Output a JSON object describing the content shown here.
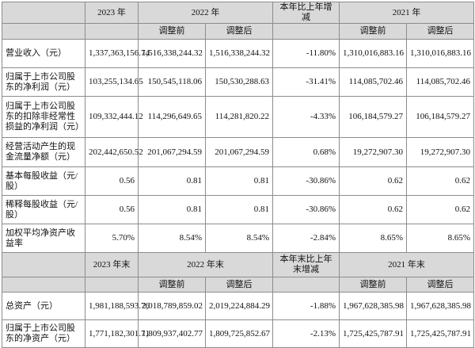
{
  "header1": {
    "c2023": "2023 年",
    "c2022": "2022 年",
    "cchange": "本年比上年增减",
    "c2021": "2021 年"
  },
  "header2": {
    "before": "调整前",
    "after": "调整后"
  },
  "rows": [
    {
      "label": "营业收入（元）",
      "v2023": "1,337,363,156.74",
      "b2022": "1,516,338,244.32",
      "a2022": "1,516,338,244.32",
      "chg": "-11.80%",
      "b2021": "1,310,016,883.16",
      "a2021": "1,310,016,883.16"
    },
    {
      "label": "归属于上市公司股东的净利润（元）",
      "v2023": "103,255,134.65",
      "b2022": "150,545,118.06",
      "a2022": "150,530,288.63",
      "chg": "-31.41%",
      "b2021": "114,085,702.46",
      "a2021": "114,085,702.46"
    },
    {
      "label": "归属于上市公司股东的扣除非经常性损益的净利润（元）",
      "v2023": "109,332,444.12",
      "b2022": "114,296,649.65",
      "a2022": "114,281,820.22",
      "chg": "-4.33%",
      "b2021": "106,184,579.27",
      "a2021": "106,184,579.27"
    },
    {
      "label": "经营活动产生的现金流量净额（元）",
      "v2023": "202,442,650.52",
      "b2022": "201,067,294.59",
      "a2022": "201,067,294.59",
      "chg": "0.68%",
      "b2021": "19,272,907.30",
      "a2021": "19,272,907.30"
    },
    {
      "label": "基本每股收益（元/股）",
      "v2023": "0.56",
      "b2022": "0.81",
      "a2022": "0.81",
      "chg": "-30.86%",
      "b2021": "0.62",
      "a2021": "0.62"
    },
    {
      "label": "稀释每股收益（元/股）",
      "v2023": "0.56",
      "b2022": "0.81",
      "a2022": "0.81",
      "chg": "-30.86%",
      "b2021": "0.62",
      "a2021": "0.62"
    },
    {
      "label": "加权平均净资产收益率",
      "v2023": "5.70%",
      "b2022": "8.54%",
      "a2022": "8.54%",
      "chg": "-2.84%",
      "b2021": "8.65%",
      "a2021": "8.65%"
    }
  ],
  "header3": {
    "c2023": "2023 年末",
    "c2022": "2022 年末",
    "cchange": "本年末比上年末增减",
    "c2021": "2021 年末"
  },
  "header4": {
    "before": "调整前",
    "after": "调整后"
  },
  "rows2": [
    {
      "label": "总资产（元）",
      "v2023": "1,981,188,593.76",
      "b2022": "2,018,789,859.02",
      "a2022": "2,019,224,884.29",
      "chg": "-1.88%",
      "b2021": "1,967,628,385.98",
      "a2021": "1,967,628,385.98"
    },
    {
      "label": "归属于上市公司股东的净资产（元）",
      "v2023": "1,771,182,301.71",
      "b2022": "1,809,937,402.77",
      "a2022": "1,809,725,852.67",
      "chg": "-2.13%",
      "b2021": "1,725,425,787.91",
      "a2021": "1,725,425,787.91"
    }
  ]
}
